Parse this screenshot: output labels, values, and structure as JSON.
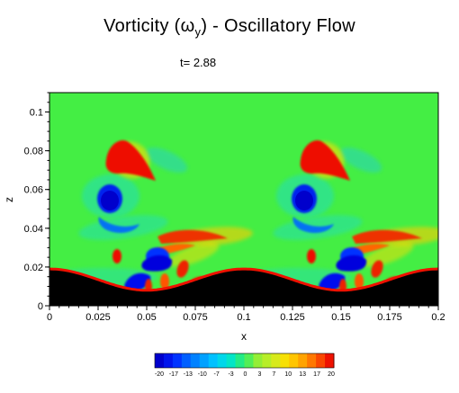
{
  "chart_data": {
    "type": "heatmap",
    "title_prefix": "Vorticity (",
    "title_symbol": "ω",
    "title_subscript": "y",
    "title_suffix": ") - Oscillatory Flow",
    "time_label": "t= 2.88",
    "xlabel": "x",
    "ylabel": "z",
    "xlim": [
      0,
      0.2
    ],
    "ylim": [
      0,
      0.11
    ],
    "x_ticks": [
      "0",
      "0.025",
      "0.05",
      "0.075",
      "0.1",
      "0.125",
      "0.15",
      "0.175",
      "0.2"
    ],
    "x_tick_values": [
      0,
      0.025,
      0.05,
      0.075,
      0.1,
      0.125,
      0.15,
      0.175,
      0.2
    ],
    "y_ticks": [
      "0",
      "0.02",
      "0.04",
      "0.06",
      "0.08",
      "0.1"
    ],
    "y_tick_values": [
      0,
      0.02,
      0.04,
      0.06,
      0.08,
      0.1
    ],
    "colorbar": {
      "labels": [
        "-20",
        "-17",
        "-13",
        "-10",
        "-7",
        "-3",
        "0",
        "3",
        "7",
        "10",
        "13",
        "17",
        "20"
      ],
      "colors": [
        "#0000cc",
        "#0022ff",
        "#0066ff",
        "#0099ff",
        "#00ccff",
        "#00e5cc",
        "#33ee66",
        "#99ee33",
        "#ccee22",
        "#ffdd00",
        "#ffaa00",
        "#ff6600",
        "#ee1100"
      ]
    },
    "background_color": "#44ee44",
    "bed_color": "#000000",
    "bed_crest_z": 0.019,
    "bed_trough_z": 0.008,
    "bed_wavelength": 0.1
  }
}
